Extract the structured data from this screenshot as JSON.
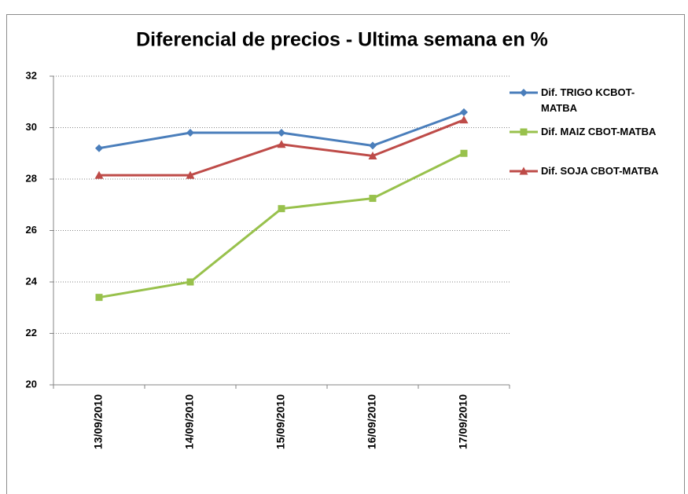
{
  "chart_data": {
    "type": "line",
    "title": "Diferencial de precios - Ultima semana en %",
    "categories": [
      "13/09/2010",
      "14/09/2010",
      "15/09/2010",
      "16/09/2010",
      "17/09/2010"
    ],
    "series": [
      {
        "name": "Dif. TRIGO KCBOT-MATBA",
        "color": "#4a7ebb",
        "marker": "diamond",
        "values": [
          29.2,
          29.8,
          29.8,
          29.3,
          30.6
        ]
      },
      {
        "name": "Dif. MAIZ CBOT-MATBA",
        "color": "#98c14c",
        "marker": "square",
        "values": [
          23.4,
          24.0,
          26.85,
          27.25,
          29.0
        ]
      },
      {
        "name": "Dif. SOJA CBOT-MATBA",
        "color": "#be4b48",
        "marker": "triangle",
        "values": [
          28.15,
          28.15,
          29.35,
          28.9,
          30.3
        ]
      }
    ],
    "ylim": [
      20,
      32
    ],
    "yticks": [
      20,
      22,
      24,
      26,
      28,
      30,
      32
    ],
    "grid": true,
    "legend": "right"
  }
}
